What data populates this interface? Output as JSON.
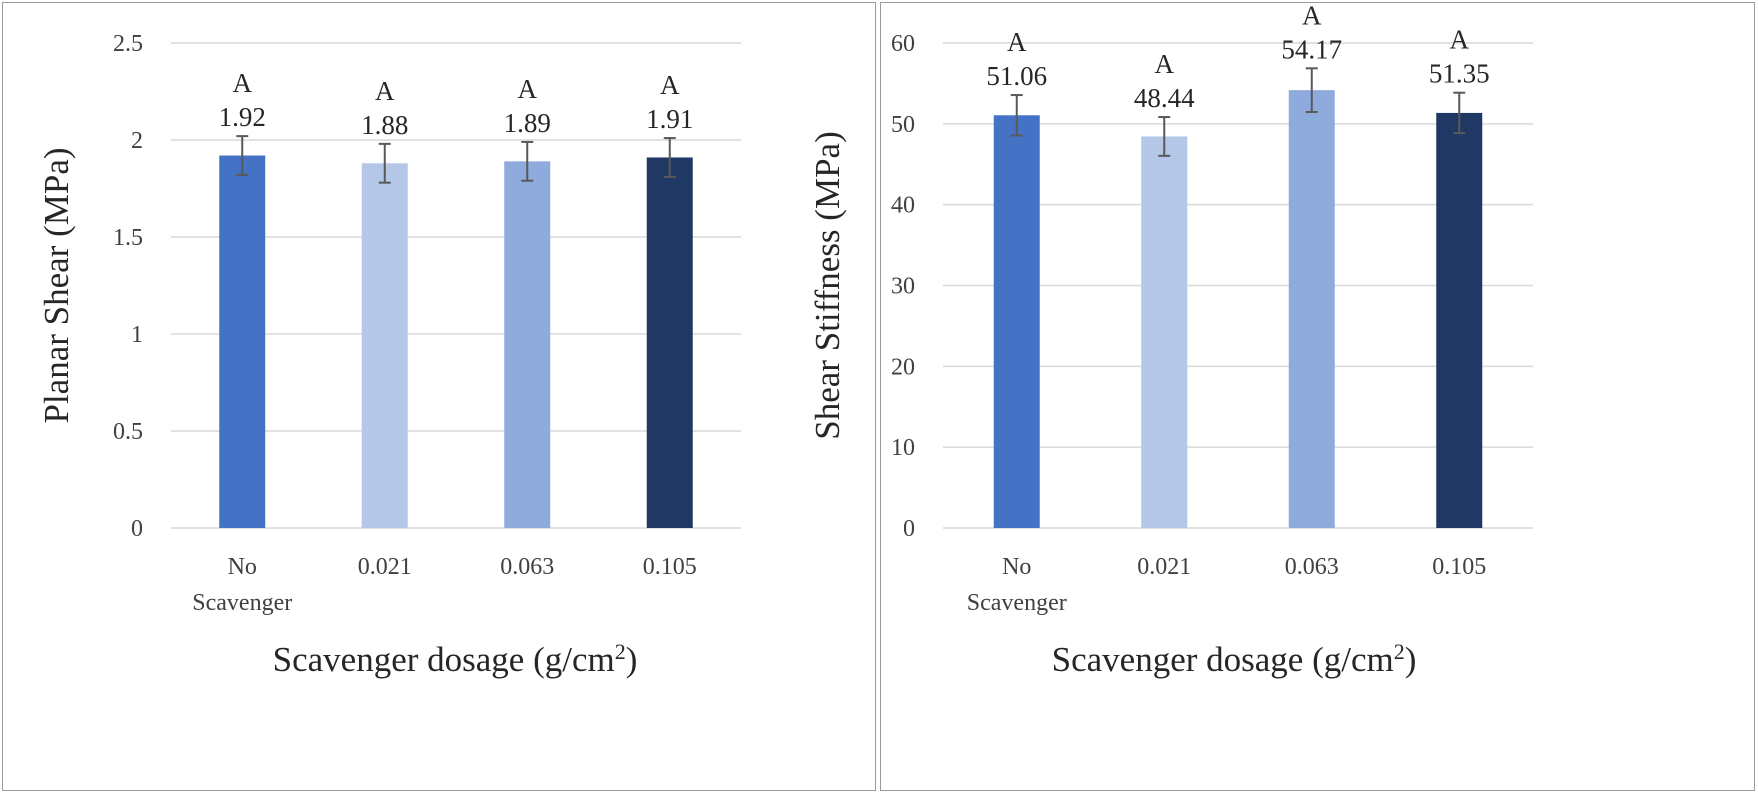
{
  "chart_data": [
    {
      "type": "bar",
      "categories": [
        "No\nScavenger",
        "0.021",
        "0.063",
        "0.105"
      ],
      "values": [
        1.92,
        1.88,
        1.89,
        1.91
      ],
      "errors": [
        0.1,
        0.1,
        0.1,
        0.1
      ],
      "data_labels": [
        "1.92",
        "1.88",
        "1.89",
        "1.91"
      ],
      "group_letters": [
        "A",
        "A",
        "A",
        "A"
      ],
      "colors": [
        "#4472c4",
        "#b4c7e7",
        "#8faadc",
        "#203864"
      ],
      "ylim": [
        0,
        2.5
      ],
      "yticks": [
        0,
        0.5,
        1,
        1.5,
        2,
        2.5
      ],
      "ytick_labels": [
        "0",
        "0.5",
        "1",
        "1.5",
        "2",
        "2.5"
      ],
      "ylabel": "Planar Shear (MPa)",
      "xlabel": "Scavenger dosage (g/cm",
      "xlabel_sup": "2",
      "xlabel_close": ")",
      "grid": true
    },
    {
      "type": "bar",
      "categories": [
        "No\nScavenger",
        "0.021",
        "0.063",
        "0.105"
      ],
      "values": [
        51.06,
        48.44,
        54.17,
        51.35
      ],
      "errors": [
        2.5,
        2.4,
        2.7,
        2.5
      ],
      "data_labels": [
        "51.06",
        "48.44",
        "54.17",
        "51.35"
      ],
      "group_letters": [
        "A",
        "A",
        "A",
        "A"
      ],
      "colors": [
        "#4472c4",
        "#b4c7e7",
        "#8faadc",
        "#203864"
      ],
      "ylim": [
        0,
        60
      ],
      "yticks": [
        0,
        10,
        20,
        30,
        40,
        50,
        60
      ],
      "ytick_labels": [
        "0",
        "10",
        "20",
        "30",
        "40",
        "50",
        "60"
      ],
      "ylabel": "Shear Stiffness (MPa)",
      "xlabel": "Scavenger dosage (g/cm",
      "xlabel_sup": "2",
      "xlabel_close": ")",
      "grid": true
    }
  ]
}
